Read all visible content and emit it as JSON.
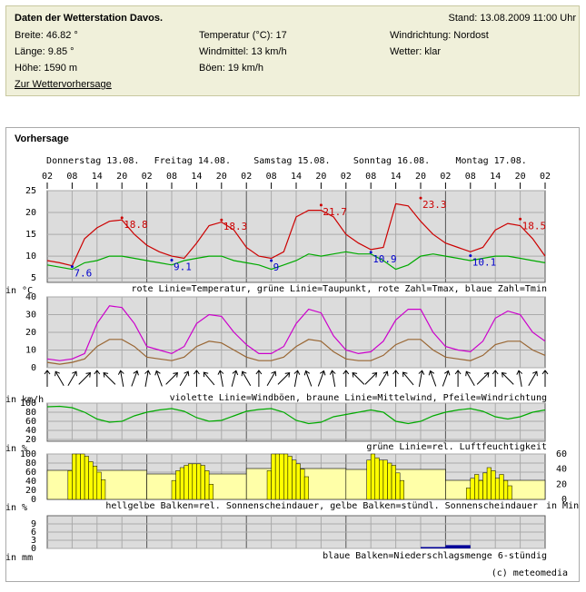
{
  "station": {
    "title": "Daten der Wetterstation Davos.",
    "updated": "Stand: 13.08.2009 11:00 Uhr",
    "col1": [
      "Breite: 46.82 °",
      "Länge: 9.85 °",
      "Höhe: 1590 m"
    ],
    "col2": [
      "Temperatur (°C): 17",
      "Windmittel: 13 km/h",
      "Böen: 19 km/h"
    ],
    "col3": [
      "Windrichtung: Nordost",
      "Wetter: klar"
    ],
    "link": "Zur Wettervorhersage"
  },
  "section_title": "Vorhersage",
  "day_labels": [
    "Donnerstag 13.08.",
    "Freitag 14.08.",
    "Samstag 15.08.",
    "Sonntag 16.08.",
    "Montag 17.08."
  ],
  "hour_labels": [
    "02",
    "08",
    "14",
    "20",
    "02",
    "08",
    "14",
    "20",
    "02",
    "08",
    "14",
    "20",
    "02",
    "08",
    "14",
    "20",
    "02",
    "08",
    "14",
    "20",
    "02"
  ],
  "chart_data": [
    {
      "type": "line",
      "ylim": [
        4,
        25
      ],
      "yticks": [
        5,
        10,
        15,
        20,
        25
      ],
      "unit_label": "in °C",
      "legend_text": "rote Linie=Temperatur, grüne Linie=Taupunkt, rote Zahl=Tmax, blaue Zahl=Tmin",
      "series": [
        {
          "color": "#cc0000",
          "values": [
            9,
            8.5,
            7.8,
            14,
            16.5,
            18,
            18.3,
            15,
            12.5,
            11,
            10,
            9.5,
            13,
            17,
            17.8,
            16,
            12,
            10,
            9.5,
            11,
            19,
            20.5,
            20.5,
            19,
            15,
            13,
            11.5,
            12,
            22,
            21.5,
            18,
            15,
            13,
            12,
            11,
            12,
            16,
            17.5,
            17,
            14,
            10
          ]
        },
        {
          "color": "#00aa00",
          "values": [
            8,
            7.5,
            7,
            8.5,
            9,
            10,
            10,
            9.5,
            9,
            8.5,
            8,
            9,
            9.5,
            10,
            10,
            9,
            8.5,
            8,
            7,
            8,
            9,
            10.5,
            10,
            10.5,
            11,
            10.5,
            10.5,
            9,
            7,
            8,
            10,
            10.5,
            10,
            9.5,
            9,
            9.5,
            10,
            10,
            9.5,
            9,
            8.5
          ]
        }
      ],
      "tmax": [
        18.8,
        18.3,
        21.7,
        23.3,
        18.5
      ],
      "tmax_color": "#cc0000",
      "tmin": [
        7.6,
        9.1,
        9.0,
        10.9,
        10.1
      ],
      "tmin_color": "#0000cc"
    },
    {
      "type": "wind",
      "ylim": [
        0,
        40
      ],
      "yticks": [
        0,
        10,
        20,
        30,
        40
      ],
      "unit_label": "in km/h",
      "legend_text": "violette Linie=Windböen, braune Linie=Mittelwind, Pfeile=Windrichtung",
      "series": [
        {
          "color": "#cc00cc",
          "values": [
            5,
            4,
            5,
            8,
            25,
            35,
            34,
            25,
            12,
            10,
            8,
            12,
            25,
            30,
            29,
            20,
            13,
            8,
            8,
            12,
            25,
            33,
            31,
            18,
            10,
            8,
            9,
            15,
            27,
            33,
            33,
            20,
            12,
            10,
            9,
            15,
            28,
            32,
            30,
            20,
            15
          ]
        },
        {
          "color": "#996633",
          "values": [
            3,
            2,
            3,
            5,
            12,
            16,
            16,
            12,
            6,
            5,
            4,
            6,
            12,
            15,
            14,
            10,
            6,
            4,
            4,
            6,
            12,
            16,
            15,
            9,
            5,
            4,
            4,
            7,
            13,
            16,
            16,
            10,
            6,
            5,
            4,
            7,
            13,
            15,
            15,
            10,
            7
          ]
        }
      ],
      "directions": [
        0,
        330,
        30,
        45,
        0,
        315,
        350,
        20,
        10,
        340,
        45,
        30,
        0,
        320,
        350,
        15,
        330,
        0,
        30,
        45,
        10,
        340,
        20,
        350,
        0,
        315,
        45,
        30,
        0,
        320,
        10,
        340,
        20,
        0,
        330,
        45,
        0,
        315,
        350,
        30,
        0
      ]
    },
    {
      "type": "line",
      "ylim": [
        16,
        100
      ],
      "yticks": [
        20,
        40,
        60,
        80,
        100
      ],
      "unit_label": "in %",
      "legend_text": "grüne Linie=rel. Luftfeuchtigkeit",
      "series": [
        {
          "color": "#00aa00",
          "values": [
            92,
            93,
            90,
            80,
            65,
            58,
            60,
            72,
            80,
            85,
            88,
            82,
            68,
            60,
            62,
            72,
            82,
            86,
            88,
            80,
            62,
            55,
            58,
            70,
            75,
            80,
            85,
            80,
            60,
            55,
            60,
            72,
            80,
            85,
            88,
            82,
            70,
            65,
            70,
            80,
            85
          ]
        }
      ]
    },
    {
      "type": "sun",
      "ylim": [
        0,
        100
      ],
      "yticks": [
        0,
        20,
        40,
        60,
        80,
        100
      ],
      "y2lim": [
        0,
        60
      ],
      "y2ticks": [
        0,
        20,
        40,
        60
      ],
      "unit_label": "in %",
      "unit_label2": "in Min",
      "legend_text": "hellgelbe Balken=rel. Sonnenscheindauer, gelbe Balken=stündl. Sonnenscheindauer",
      "series": [
        {
          "color": "#ffffa8",
          "values": [
            64,
            56,
            68,
            66,
            42
          ]
        },
        {
          "color": "#ffff00",
          "axis": "y2",
          "values": [
            38,
            60,
            60,
            60,
            57,
            50,
            44,
            36,
            26,
            0,
            0,
            0,
            25,
            38,
            42,
            45,
            47,
            47,
            47,
            45,
            38,
            20,
            38,
            60,
            60,
            60,
            60,
            57,
            52,
            47,
            40,
            30,
            0,
            52,
            60,
            55,
            52,
            52,
            48,
            45,
            35,
            25,
            0,
            0,
            15,
            28,
            33,
            25,
            35,
            42,
            38,
            28,
            33,
            25,
            18
          ]
        }
      ]
    },
    {
      "type": "bar",
      "ylim": [
        0,
        12
      ],
      "yticks": [
        0,
        3,
        6,
        9
      ],
      "unit_label": "in mm",
      "legend_text": "blaue Balken=Niederschlagsmenge 6-stündig",
      "series": [
        {
          "color": "#000099",
          "values": [
            0,
            0,
            0,
            0,
            0,
            0,
            0,
            0,
            0,
            0,
            0,
            0,
            0,
            0,
            0,
            0.5,
            1.2,
            0,
            0,
            0
          ]
        }
      ]
    }
  ],
  "copyright": "(c) meteomedia"
}
